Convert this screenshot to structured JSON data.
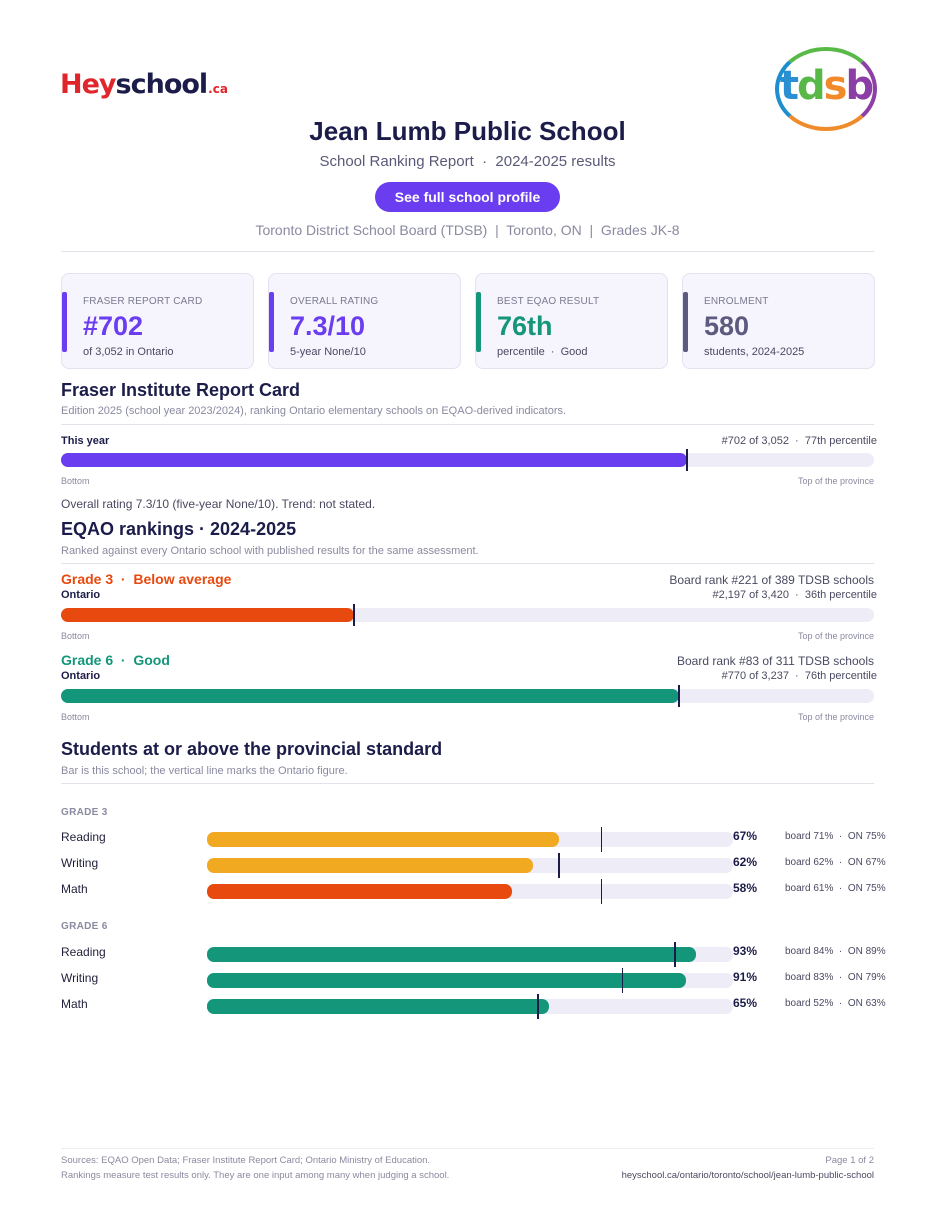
{
  "header": {
    "logo_left": {
      "hey": "Hey",
      "school": "school",
      "ca": ".ca"
    },
    "logo_right": {
      "t": "t",
      "d": "d",
      "s": "s",
      "b": "b"
    },
    "title": "Jean Lumb Public School",
    "subtitle": "School Ranking Report  ·  2024-2025 results",
    "cta": "See full school profile",
    "meta": "Toronto District School Board (TDSB)  |  Toronto, ON  |  Grades JK-8"
  },
  "cards": [
    {
      "label": "FRASER REPORT CARD",
      "value": "#702",
      "sub": "of 3,052 in Ontario",
      "color": "#6a3df0"
    },
    {
      "label": "OVERALL RATING",
      "value": "7.3/10",
      "sub": "5-year None/10",
      "color": "#6a3df0"
    },
    {
      "label": "BEST EQAO RESULT",
      "value": "76th",
      "sub": "percentile  ·  Good",
      "color": "#14967a"
    },
    {
      "label": "ENROLMENT",
      "value": "580",
      "sub": "students, 2024-2025",
      "color": "#5d5a80"
    }
  ],
  "fraser": {
    "heading": "Fraser Institute Report Card",
    "desc": "Edition 2025 (school year 2023/2024), ranking Ontario elementary schools on EQAO-derived indicators.",
    "row_label": "This year",
    "rank_text": "#702 of 3,052  ·  77th percentile",
    "percentile": 77,
    "bottom": "Bottom",
    "top": "Top of the province",
    "note": "Overall rating 7.3/10 (five-year None/10). Trend: not stated.",
    "color": "#6a3df0"
  },
  "eqao": {
    "heading": "EQAO rankings  ·  2024-2025",
    "desc": "Ranked against every Ontario school with published results for the same assessment.",
    "rows": [
      {
        "grade": "Grade 3  ·  Below average",
        "scope": "Ontario",
        "board": "Board rank #221 of 389 TDSB schools",
        "rank": "#2,197 of 3,420  ·  36th percentile",
        "percentile": 36,
        "color": "#e8490f",
        "bottom": "Bottom",
        "top": "Top of the province"
      },
      {
        "grade": "Grade 6  ·  Good",
        "scope": "Ontario",
        "board": "Board rank #83 of 311 TDSB schools",
        "rank": "#770 of 3,237  ·  76th percentile",
        "percentile": 76,
        "color": "#14967a",
        "bottom": "Bottom",
        "top": "Top of the province"
      }
    ]
  },
  "standards": {
    "heading": "Students at or above the provincial standard",
    "desc": "Bar is this school; the vertical line marks the Ontario figure.",
    "groups": [
      {
        "grade": "GRADE 3",
        "rows": [
          {
            "subject": "Reading",
            "pct": 67,
            "pct_text": "67%",
            "cmp": "board 71%  ·  ON 75%",
            "on": 75,
            "color": "#f2a922"
          },
          {
            "subject": "Writing",
            "pct": 62,
            "pct_text": "62%",
            "cmp": "board 62%  ·  ON 67%",
            "on": 67,
            "color": "#f2a922"
          },
          {
            "subject": "Math",
            "pct": 58,
            "pct_text": "58%",
            "cmp": "board 61%  ·  ON 75%",
            "on": 75,
            "color": "#e8490f"
          }
        ]
      },
      {
        "grade": "GRADE 6",
        "rows": [
          {
            "subject": "Reading",
            "pct": 93,
            "pct_text": "93%",
            "cmp": "board 84%  ·  ON 89%",
            "on": 89,
            "color": "#14967a"
          },
          {
            "subject": "Writing",
            "pct": 91,
            "pct_text": "91%",
            "cmp": "board 83%  ·  ON 79%",
            "on": 79,
            "color": "#14967a"
          },
          {
            "subject": "Math",
            "pct": 65,
            "pct_text": "65%",
            "cmp": "board 52%  ·  ON 63%",
            "on": 63,
            "color": "#14967a"
          }
        ]
      }
    ]
  },
  "footer": {
    "sources": "Sources: EQAO Open Data; Fraser Institute Report Card; Ontario Ministry of Education.",
    "disclaimer": "Rankings measure test results only. They are one input among many when judging a school.",
    "page": "Page 1 of 2",
    "url": "heyschool.ca/ontario/toronto/school/jean-lumb-public-school"
  }
}
